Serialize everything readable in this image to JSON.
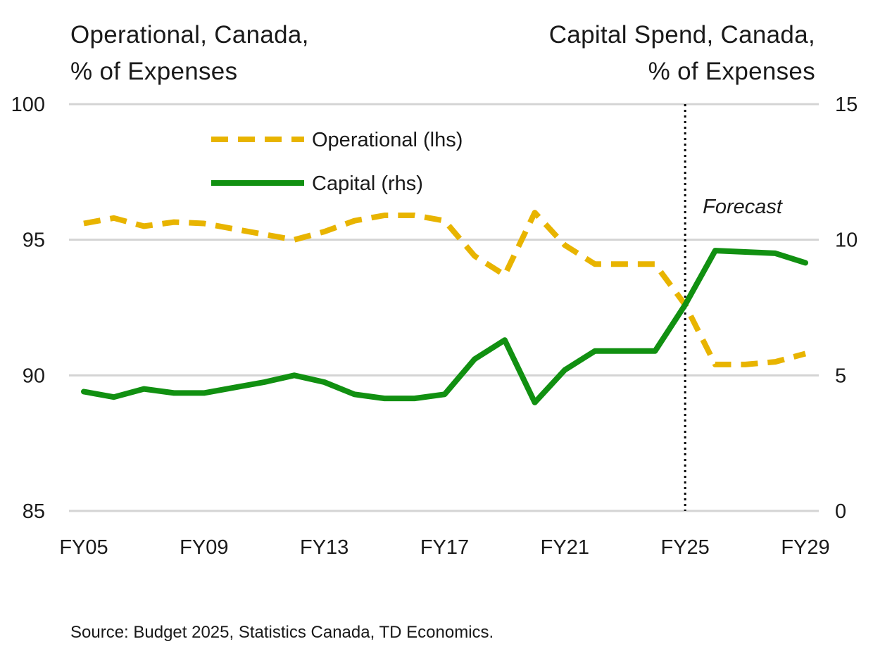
{
  "chart_data": {
    "type": "line",
    "left_axis_title": [
      "Operational, Canada,",
      "% of Expenses"
    ],
    "right_axis_title": [
      "Capital Spend, Canada,",
      "% of Expenses"
    ],
    "x": [
      "FY05",
      "FY06",
      "FY07",
      "FY08",
      "FY09",
      "FY10",
      "FY11",
      "FY12",
      "FY13",
      "FY14",
      "FY15",
      "FY16",
      "FY17",
      "FY18",
      "FY19",
      "FY20",
      "FY21",
      "FY22",
      "FY23",
      "FY24",
      "FY25",
      "FY26",
      "FY27",
      "FY28",
      "FY29"
    ],
    "x_tick_labels": [
      "FY05",
      "FY09",
      "FY13",
      "FY17",
      "FY21",
      "FY25",
      "FY29"
    ],
    "y_left": {
      "min": 85,
      "max": 100,
      "ticks": [
        85,
        90,
        95,
        100
      ]
    },
    "y_right": {
      "min": 0,
      "max": 15,
      "ticks": [
        0,
        5,
        10,
        15
      ]
    },
    "grid": true,
    "legend_position": "top-left",
    "series": [
      {
        "name": "Operational (lhs)",
        "axis": "left",
        "style": "dashed",
        "color": "#E8B400",
        "values": [
          95.6,
          95.8,
          95.5,
          95.65,
          95.6,
          95.4,
          95.2,
          95.0,
          95.3,
          95.7,
          95.9,
          95.9,
          95.7,
          94.4,
          93.7,
          96.0,
          94.8,
          94.1,
          94.1,
          94.1,
          92.6,
          90.4,
          90.4,
          90.5,
          90.8
        ]
      },
      {
        "name": "Capital (rhs)",
        "axis": "right",
        "style": "solid",
        "color": "#119011",
        "values": [
          4.4,
          4.2,
          4.5,
          4.35,
          4.35,
          4.55,
          4.75,
          5.0,
          4.75,
          4.3,
          4.15,
          4.15,
          4.3,
          5.6,
          6.3,
          4.0,
          5.2,
          5.9,
          5.9,
          5.9,
          7.6,
          9.6,
          9.55,
          9.5,
          9.15
        ]
      }
    ],
    "forecast_start": "FY25",
    "annotations": {
      "forecast": "Forecast"
    },
    "source": "Source: Budget 2025, Statistics Canada, TD Economics."
  }
}
